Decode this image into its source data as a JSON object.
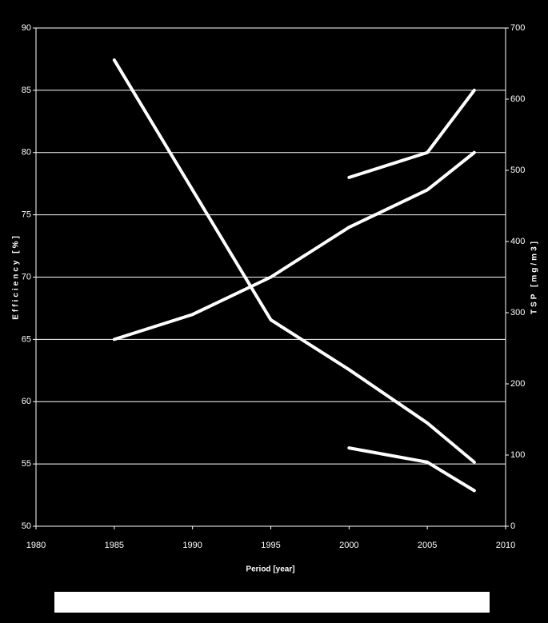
{
  "chart_data": {
    "type": "line",
    "xlabel": "Period [year]",
    "ylabel": "Efficiency [%]",
    "y2label": "TSP [mg/m3]",
    "xlim": [
      1980,
      2010
    ],
    "xticks": [
      1980,
      1985,
      1990,
      1995,
      2000,
      2005,
      2010
    ],
    "ylim": [
      50,
      90
    ],
    "yticks": [
      50,
      55,
      60,
      65,
      70,
      75,
      80,
      85,
      90
    ],
    "y2lim": [
      0,
      700
    ],
    "y2ticks": [
      0,
      100,
      200,
      300,
      400,
      500,
      600,
      700
    ],
    "grid": true,
    "series": [
      {
        "color": "#ffffff",
        "x": [
          1985,
          1990,
          1995,
          2000,
          2005,
          2008
        ],
        "values": [
          65,
          67,
          70,
          74,
          77,
          80
        ]
      },
      {
        "color": "#ffffff",
        "x": [
          2000,
          2005,
          2008
        ],
        "values": [
          78,
          80,
          85
        ]
      },
      {
        "color": "#ffffff",
        "axis": "y2",
        "x": [
          1985,
          1995,
          2000,
          2005,
          2008
        ],
        "values": [
          655,
          290,
          220,
          145,
          90
        ]
      },
      {
        "color": "#ffffff",
        "axis": "y2",
        "x": [
          2000,
          2005,
          2008
        ],
        "values": [
          110,
          90,
          50
        ]
      }
    ]
  }
}
